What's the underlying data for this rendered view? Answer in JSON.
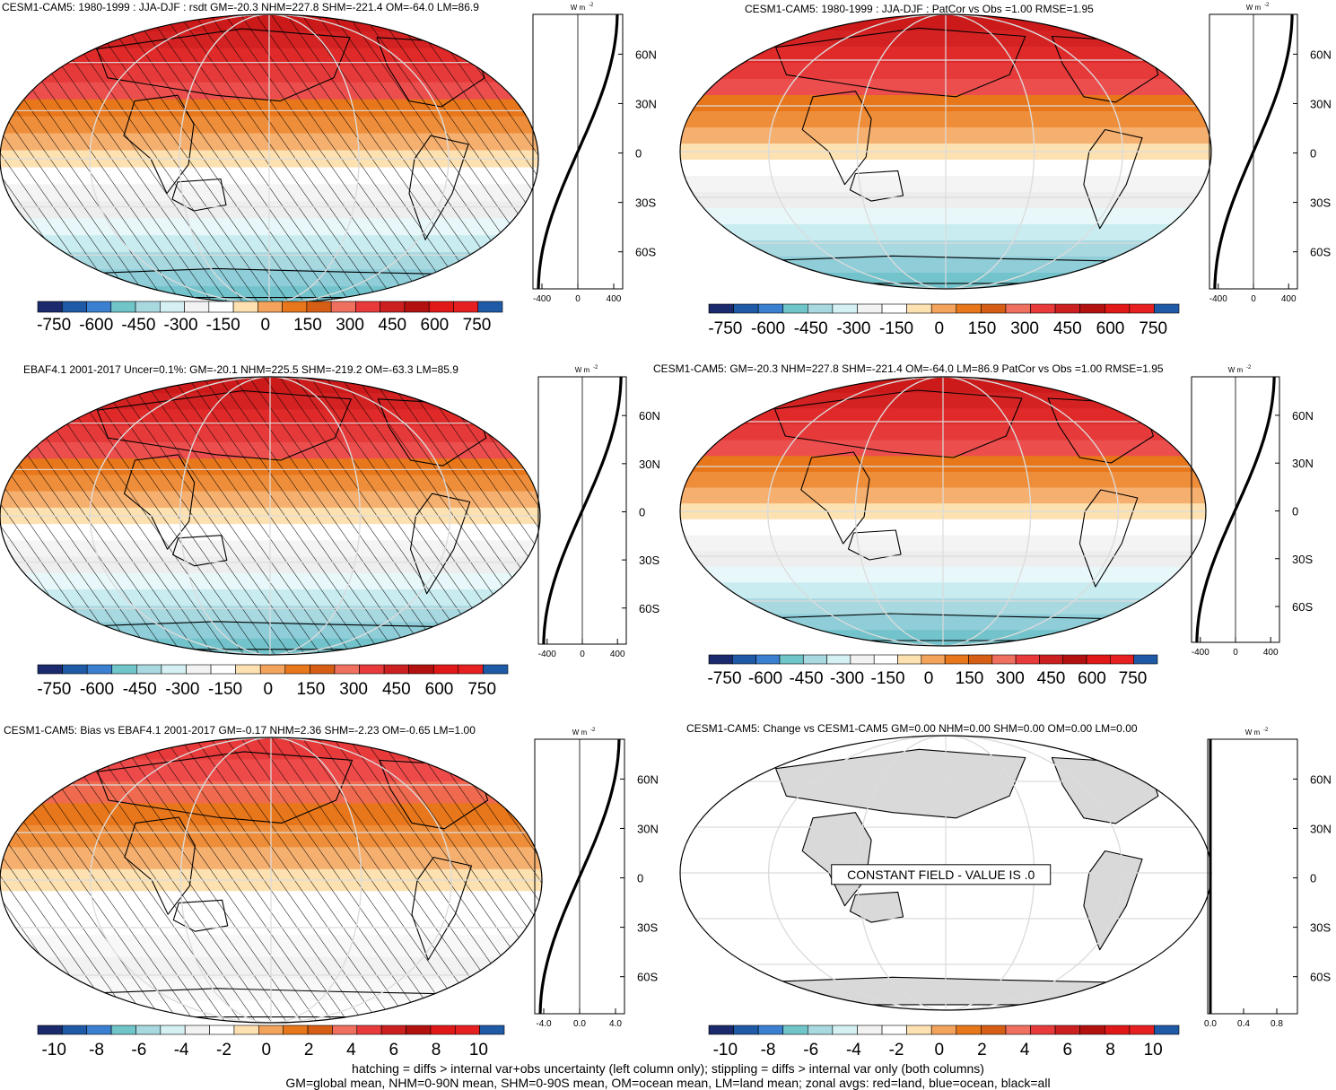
{
  "figure": {
    "units_label": "W m",
    "units_exp": "-2",
    "lat_labels": [
      "60N",
      "30N",
      "0",
      "30S",
      "60S"
    ],
    "constant_field_label": "CONSTANT FIELD - VALUE IS .0",
    "footer": [
      "hatching = diffs > internal var+obs uncertainty (left column only); stippling = diffs > internal var only (both columns)",
      "GM=global mean, NHM=0-90N mean, SHM=0-90S mean, OM=ocean mean, LM=land mean; zonal avgs: red=land, blue=ocean, black=all"
    ]
  },
  "colorbars": {
    "colors": [
      "#1a2a6c",
      "#1f5aa6",
      "#3a7fd0",
      "#6fc5c8",
      "#a8d8e0",
      "#d4f0f2",
      "#f2f2f2",
      "#ffffff",
      "#fde1b0",
      "#f3a35c",
      "#e8761a",
      "#d65e14",
      "#f07060",
      "#e83a3a",
      "#cc1f1f",
      "#b31010",
      "#e01818",
      "#e62020",
      "#1f5aa6"
    ],
    "flux_ticks": [
      "-750",
      "-600",
      "-450",
      "-300",
      "-150",
      "0",
      "150",
      "300",
      "450",
      "600",
      "750"
    ],
    "bias_ticks": [
      "-10",
      "-8",
      "-6",
      "-4",
      "-2",
      "0",
      "2",
      "4",
      "6",
      "8",
      "10"
    ]
  },
  "panels": [
    {
      "id": "p1",
      "title": "CESM1-CAM5: 1980-1999 : JJA-DJF : rsdt GM=-20.3 NHM=227.8 SHM=-221.4 OM=-64.0 LM=86.9",
      "field": "flux",
      "hatched": true,
      "constant": false,
      "zonal_ticks": [
        "-400",
        "0",
        "400"
      ]
    },
    {
      "id": "p2",
      "title": "CESM1-CAM5: 1980-1999 : JJA-DJF : PatCor vs Obs =1.00 RMSE=1.95",
      "field": "flux",
      "hatched": false,
      "constant": false,
      "zonal_ticks": [
        "-400",
        "0",
        "400"
      ]
    },
    {
      "id": "p3",
      "title": "EBAF4.1 2001-2017 Uncer=0.1%: GM=-20.1 NHM=225.5 SHM=-219.2 OM=-63.3 LM=85.9",
      "field": "flux",
      "hatched": true,
      "constant": false,
      "zonal_ticks": [
        "-400",
        "0",
        "400"
      ]
    },
    {
      "id": "p4",
      "title": "CESM1-CAM5: GM=-20.3 NHM=227.8 SHM=-221.4 OM=-64.0 LM=86.9 PatCor vs Obs =1.00 RMSE=1.95",
      "field": "flux",
      "hatched": false,
      "constant": false,
      "zonal_ticks": [
        "-400",
        "0",
        "400"
      ]
    },
    {
      "id": "p5",
      "title": "CESM1-CAM5: Bias vs EBAF4.1 2001-2017 GM=-0.17 NHM=2.36 SHM=-2.23 OM=-0.65 LM=1.00",
      "field": "bias",
      "hatched": true,
      "constant": false,
      "zonal_ticks": [
        "-4.0",
        "0.0",
        "4.0"
      ]
    },
    {
      "id": "p6",
      "title": "CESM1-CAM5: Change vs CESM1-CAM5 GM=0.00 NHM=0.00 SHM=0.00 OM=0.00 LM=0.00",
      "field": "bias",
      "hatched": false,
      "constant": true,
      "zonal_ticks": [
        "0.0",
        "0.4",
        "0.8"
      ]
    }
  ]
}
